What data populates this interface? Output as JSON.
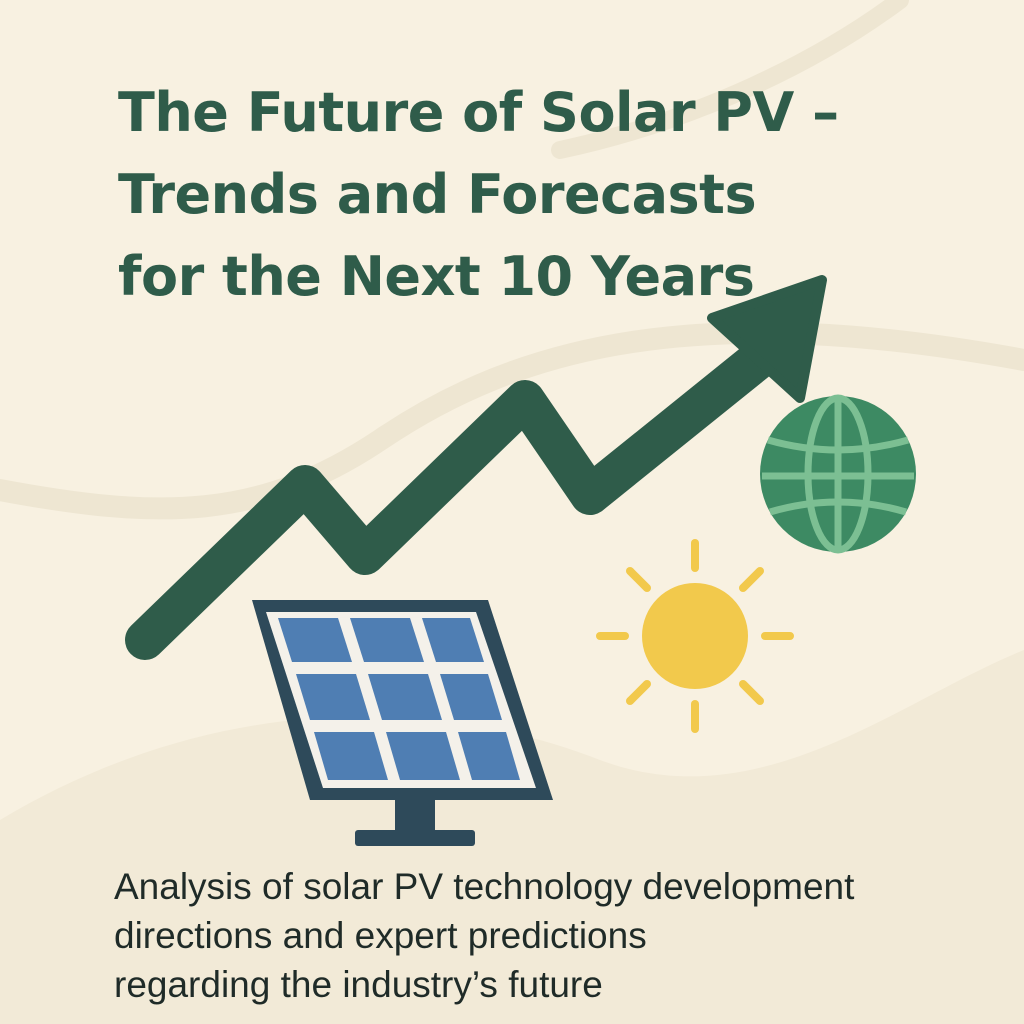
{
  "title": {
    "line1": "The Future of Solar PV –",
    "line2": "Trends and Forecasts",
    "line3": "for the Next 10 Years"
  },
  "subtitle": {
    "line1": "Analysis of solar PV technology development",
    "line2": "directions and expert predictions",
    "line3": "regarding the industry’s future"
  },
  "colors": {
    "background": "#f8f1e1",
    "title_text": "#2f5c4a",
    "trend_arrow": "#2f5c4a",
    "globe": "#3d8a63",
    "sun": "#f2c94c",
    "panel_cells": "#4f7eb3",
    "panel_frame": "#2e4a5a",
    "body_text": "#1f2b28"
  },
  "icons": [
    "trend-arrow-icon",
    "globe-icon",
    "sun-icon",
    "solar-panel-icon"
  ]
}
